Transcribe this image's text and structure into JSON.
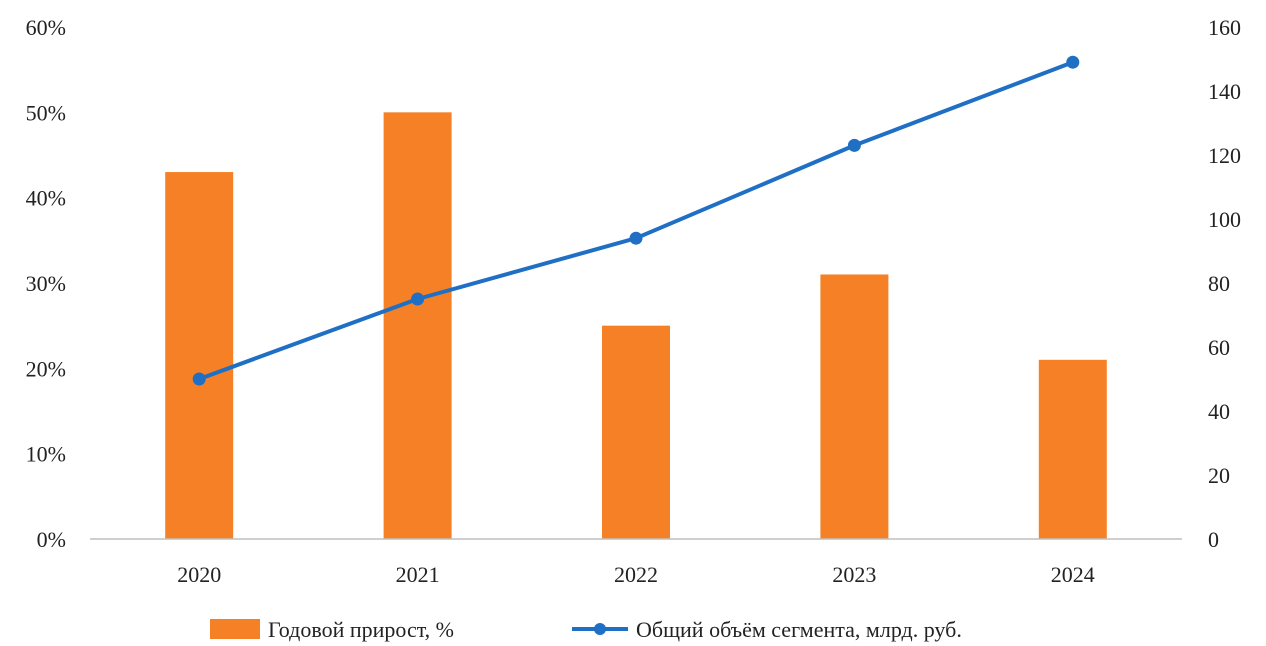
{
  "chart_data": {
    "type": "bar",
    "categories": [
      "2020",
      "2021",
      "2022",
      "2023",
      "2024"
    ],
    "series": [
      {
        "name": "Годовой прирост, %",
        "type": "bar",
        "axis": "left",
        "color": "#F58025",
        "values": [
          43,
          50,
          25,
          31,
          21
        ]
      },
      {
        "name": "Общий объём сегмента, млрд. руб.",
        "type": "line",
        "axis": "right",
        "color": "#1F6FC5",
        "values": [
          50,
          75,
          94,
          123,
          149
        ]
      }
    ],
    "y_left": {
      "min": 0,
      "max": 60,
      "step": 10,
      "format": "percent",
      "tick_labels": [
        "0%",
        "10%",
        "20%",
        "30%",
        "40%",
        "50%",
        "60%"
      ]
    },
    "y_right": {
      "min": 0,
      "max": 160,
      "step": 20,
      "tick_labels": [
        "0",
        "20",
        "40",
        "60",
        "80",
        "100",
        "120",
        "140",
        "160"
      ]
    },
    "grid": false,
    "legend": "bottom"
  }
}
